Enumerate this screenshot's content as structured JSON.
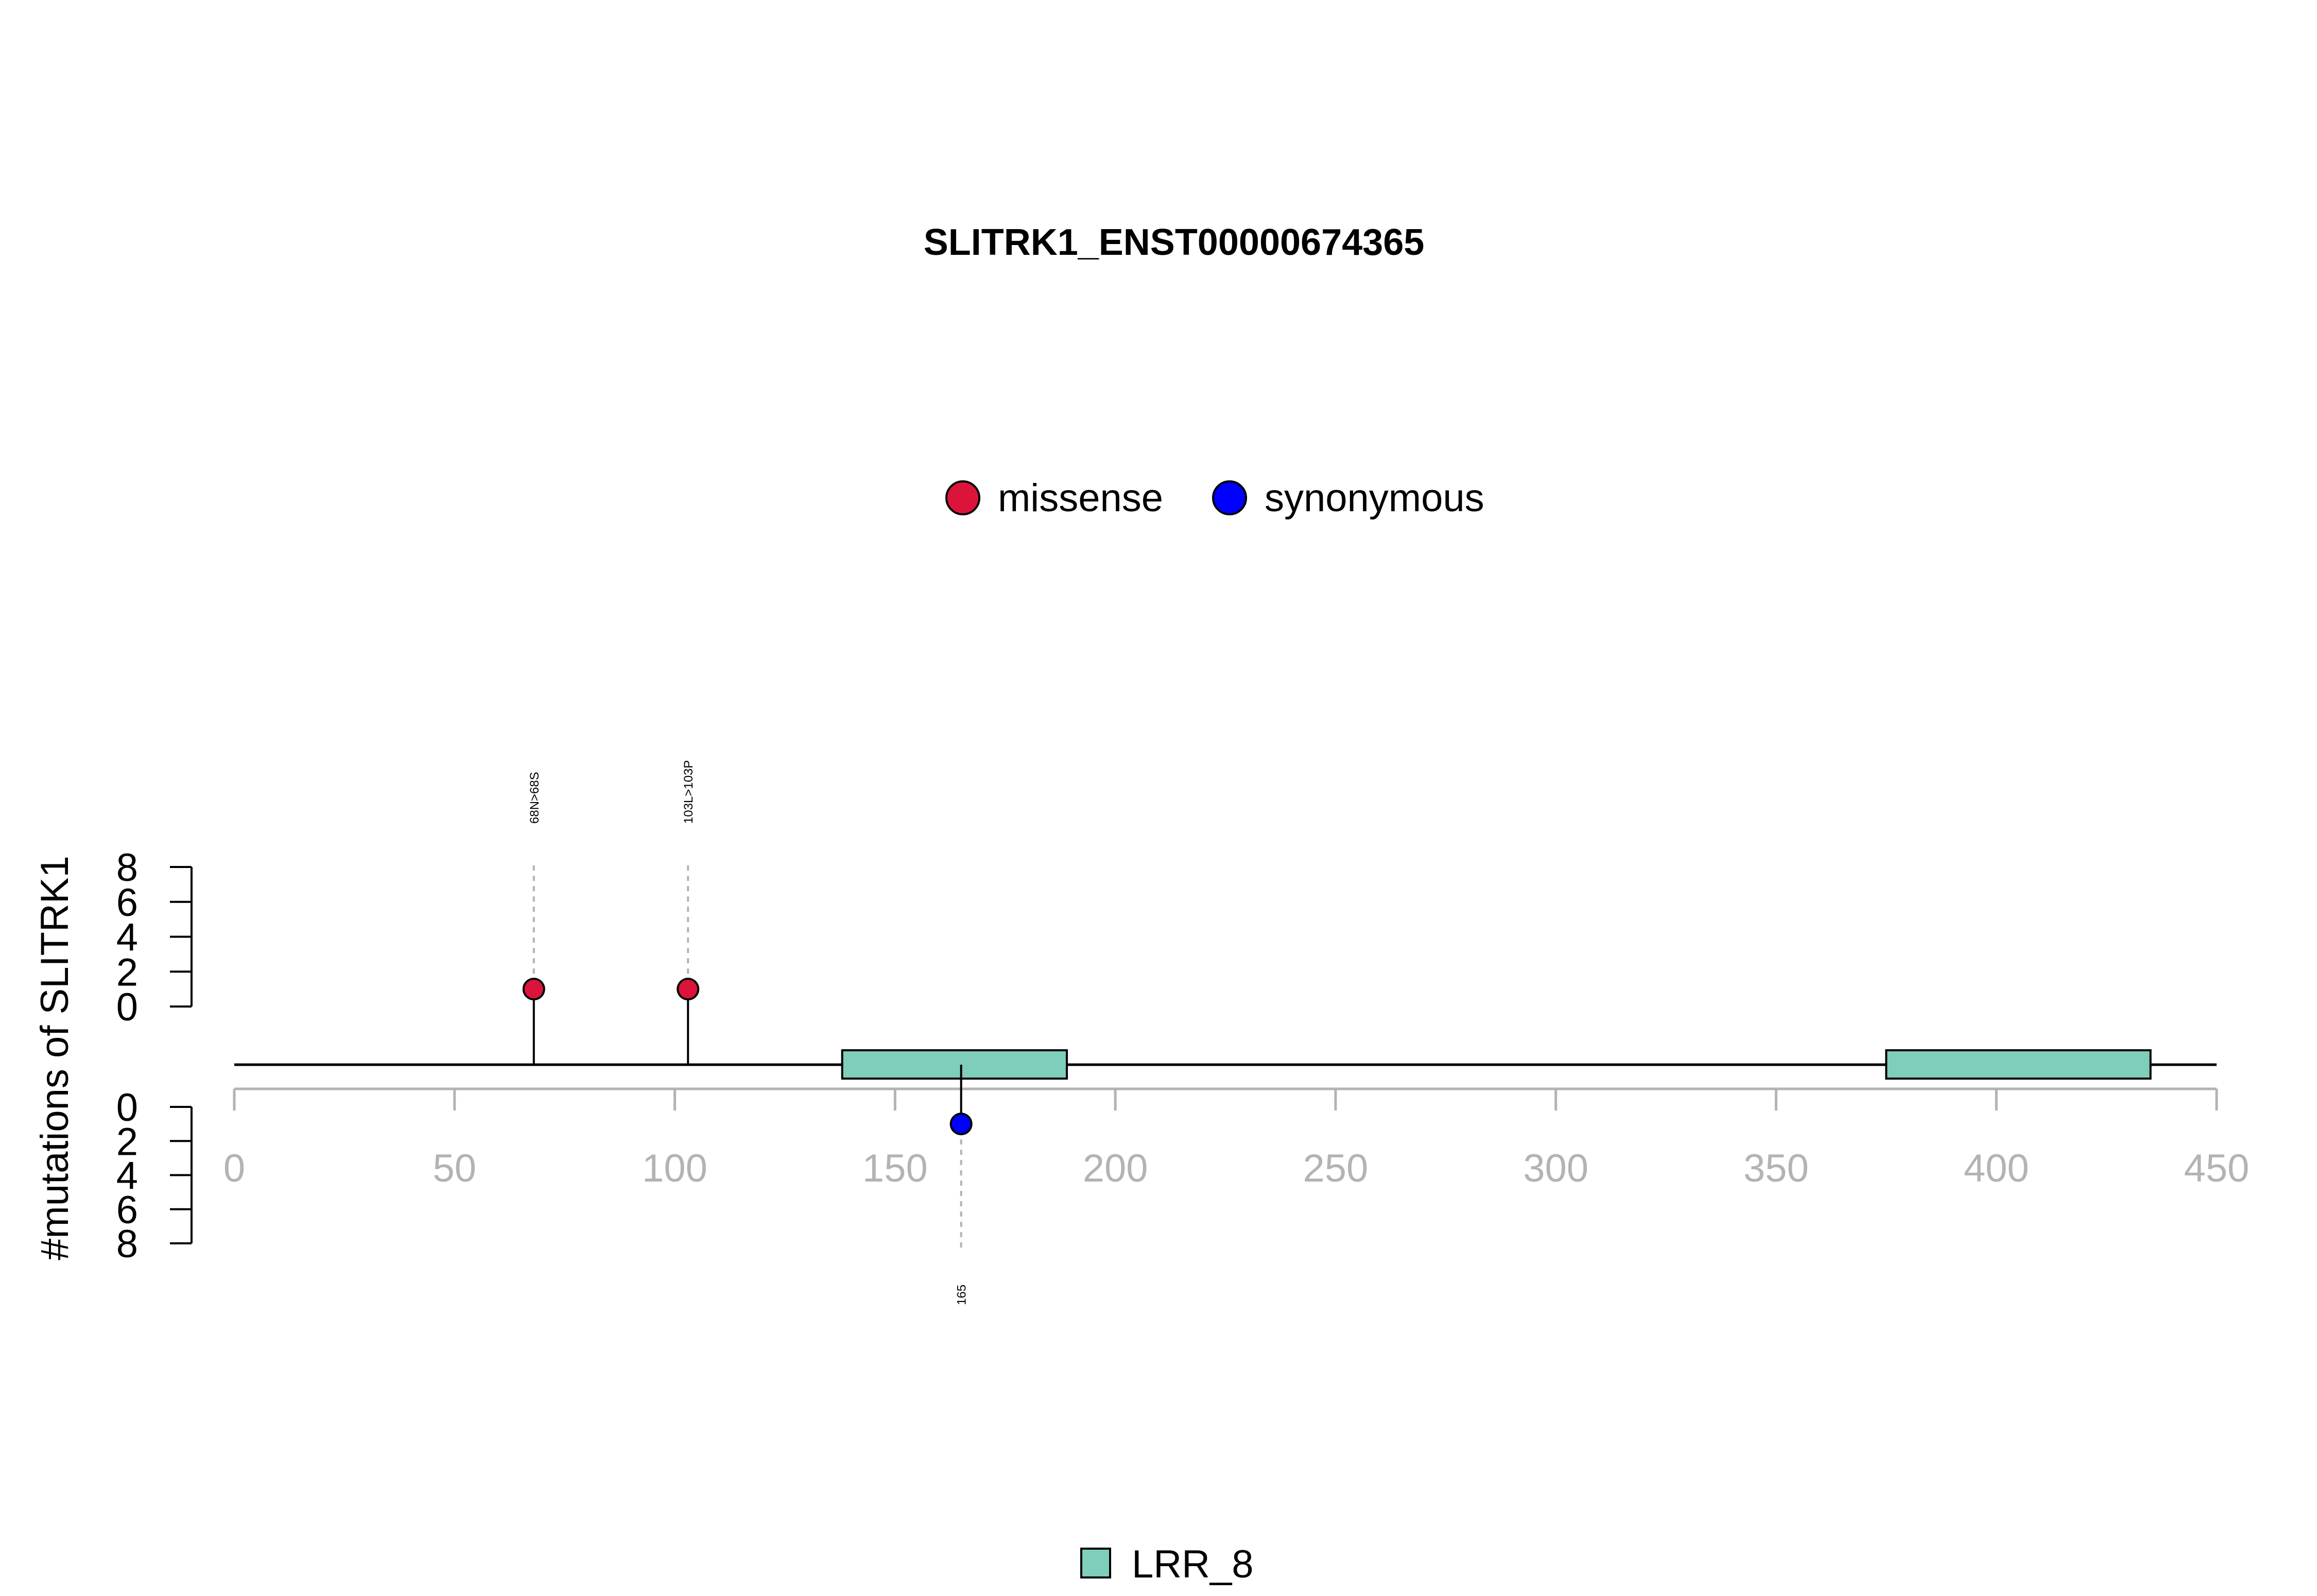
{
  "chart_data": {
    "type": "lollipop",
    "title": "SLITRK1_ENST00000674365",
    "ylabel": "#mutations of SLITRK1",
    "xlim": [
      0,
      450
    ],
    "x_ticks": [
      0,
      50,
      100,
      150,
      200,
      250,
      300,
      350,
      400,
      450
    ],
    "y_ticks_upper": [
      0,
      2,
      4,
      6,
      8
    ],
    "y_ticks_lower": [
      0,
      2,
      4,
      6,
      8
    ],
    "ylim": [
      0,
      8
    ],
    "legend": [
      {
        "name": "missense",
        "color": "#dc143c"
      },
      {
        "name": "synonymous",
        "color": "#0000ff"
      }
    ],
    "domain_legend": [
      {
        "name": "LRR_8",
        "color": "#7fcdbb"
      }
    ],
    "mutations": [
      {
        "position": 68,
        "count": 1,
        "type": "missense",
        "label": "68N>68S",
        "strand": "upper"
      },
      {
        "position": 103,
        "count": 1,
        "type": "missense",
        "label": "103L>103P",
        "strand": "upper"
      },
      {
        "position": 165,
        "count": 1,
        "type": "synonymous",
        "label": "165",
        "strand": "lower"
      }
    ],
    "domains": [
      {
        "name": "LRR_8",
        "start": 138,
        "end": 189,
        "color": "#7fcdbb"
      },
      {
        "name": "LRR_8",
        "start": 375,
        "end": 435,
        "color": "#7fcdbb"
      }
    ]
  }
}
